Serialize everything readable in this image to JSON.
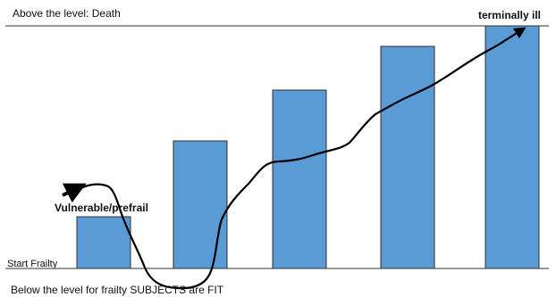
{
  "labels": {
    "top_level": "Above the level: Death",
    "terminal": "terminally ill",
    "vulnerable": "Vulnerable/prefrail",
    "start": "Start Frailty",
    "bottom_level": "Below the level for frailty SUBJECTS are  FIT"
  },
  "levels": [
    1,
    2,
    3,
    4,
    5
  ],
  "colors": {
    "bar_fill": "#5b9bd5",
    "bar_stroke": "#2f2f2f",
    "line": "#000000",
    "curve": "#000000"
  }
}
